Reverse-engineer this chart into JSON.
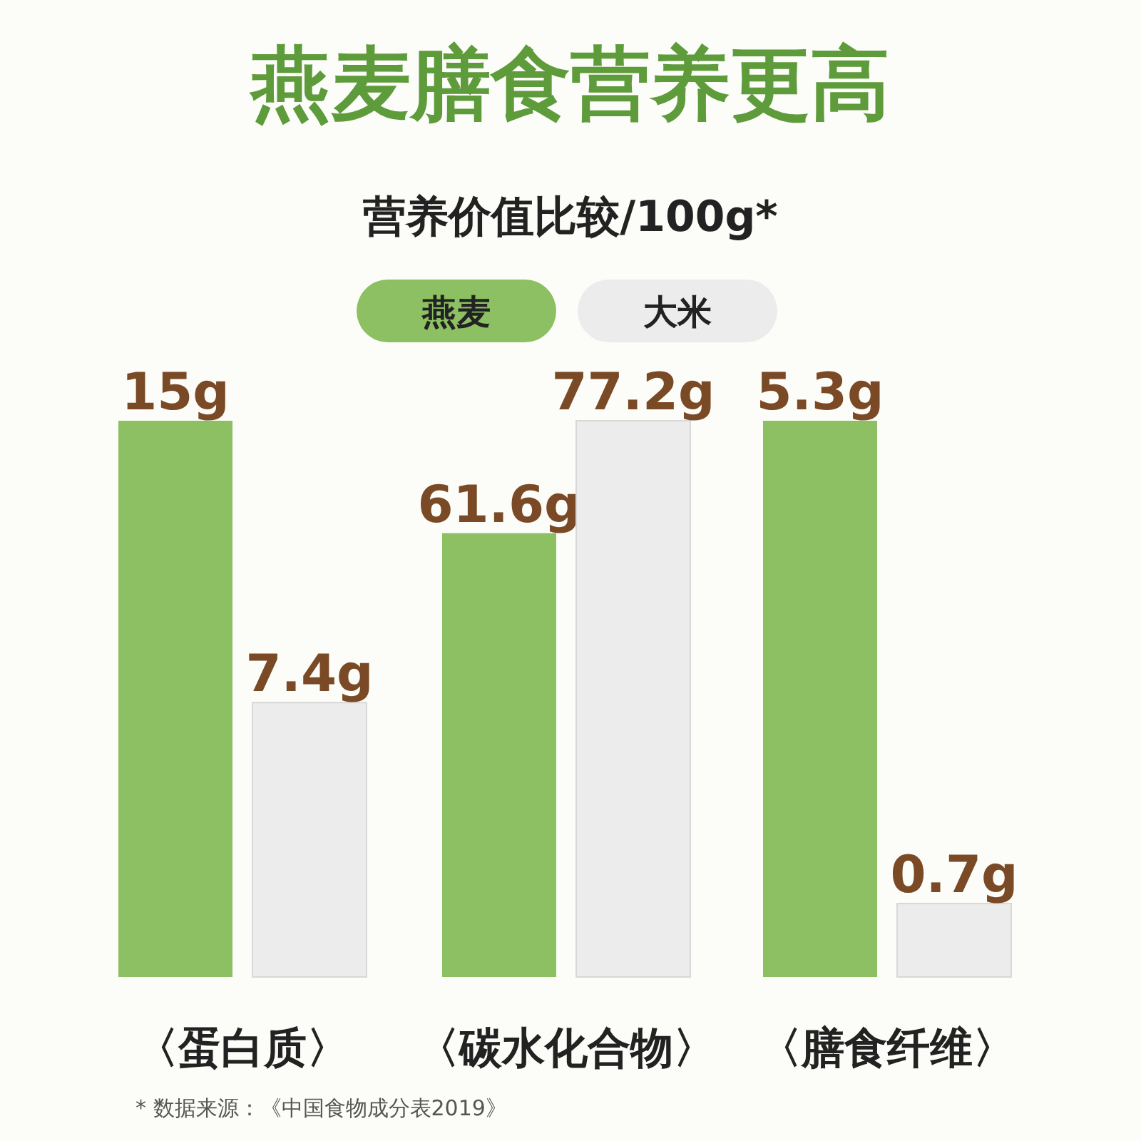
{
  "chart_data": [
    {
      "type": "other",
      "title": "燕麦膳食营养更高",
      "subtitle": "营养价值比较/100g*"
    },
    {
      "type": "bar",
      "data_labels": true,
      "categories": [
        "〈蛋白质〉"
      ],
      "series": [
        {
          "color": "#8cc063",
          "values": [
            15
          ],
          "value_labels": [
            "15g"
          ]
        },
        {
          "color": "#ececec",
          "values": [
            7.4
          ],
          "value_labels": [
            "7.4g"
          ]
        }
      ]
    },
    {
      "type": "bar",
      "legend": "top",
      "data_labels": true,
      "categories": [
        "〈碳水化合物〉"
      ],
      "series": [
        {
          "name": "燕麦",
          "color": "#8cc063",
          "values": [
            61.6
          ],
          "value_labels": [
            "61.6g"
          ]
        },
        {
          "name": "大米",
          "color": "#ececec",
          "values": [
            77.2
          ],
          "value_labels": [
            "77.2g"
          ]
        }
      ]
    },
    {
      "type": "bar",
      "data_labels": true,
      "categories": [
        "〈膳食纤维〉"
      ],
      "annotations": [
        "* 数据来源：《中国食物成分表2019》"
      ],
      "series": [
        {
          "color": "#8cc063",
          "values": [
            5.3
          ],
          "value_labels": [
            "5.3g"
          ]
        },
        {
          "color": "#ececec",
          "values": [
            0.7
          ],
          "value_labels": [
            "0.7g"
          ]
        }
      ]
    }
  ]
}
